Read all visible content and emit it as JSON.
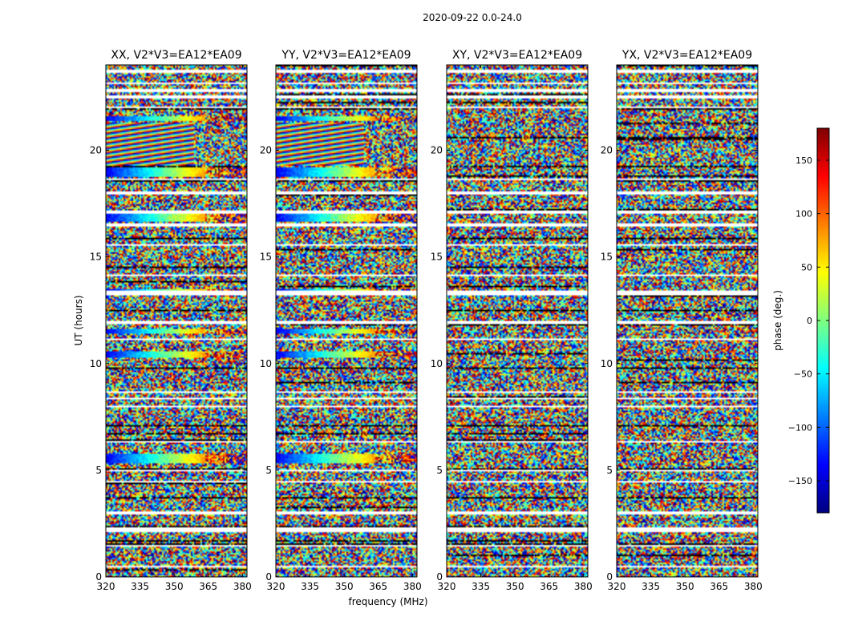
{
  "figure_title": "2020-09-22 0.0-24.0",
  "chart_data": [
    {
      "type": "heatmap",
      "title": "XX, V2*V3=EA12*EA09",
      "polarization": "XX",
      "xlabel": "",
      "ylabel": "UT (hours)",
      "xlim": [
        320,
        382
      ],
      "ylim": [
        0,
        24
      ],
      "xticks": [
        320,
        335,
        350,
        365,
        380
      ],
      "yticks": [
        0,
        5,
        10,
        15,
        20
      ],
      "show_yticks": true
    },
    {
      "type": "heatmap",
      "title": "YY, V2*V3=EA12*EA09",
      "polarization": "YY",
      "xlabel": "frequency (MHz)",
      "ylabel": "",
      "xlim": [
        320,
        382
      ],
      "ylim": [
        0,
        24
      ],
      "xticks": [
        320,
        335,
        350,
        365,
        380
      ],
      "yticks": [
        0,
        5,
        10,
        15,
        20
      ],
      "show_yticks": true
    },
    {
      "type": "heatmap",
      "title": "XY, V2*V3=EA12*EA09",
      "polarization": "XY",
      "xlabel": "",
      "ylabel": "",
      "xlim": [
        320,
        382
      ],
      "ylim": [
        0,
        24
      ],
      "xticks": [
        320,
        335,
        350,
        365,
        380
      ],
      "yticks": [
        0,
        5,
        10,
        15,
        20
      ],
      "show_yticks": true
    },
    {
      "type": "heatmap",
      "title": "YX, V2*V3=EA12*EA09",
      "polarization": "YX",
      "xlabel": "",
      "ylabel": "",
      "xlim": [
        320,
        382
      ],
      "ylim": [
        0,
        24
      ],
      "xticks": [
        320,
        335,
        350,
        365,
        380
      ],
      "yticks": [
        0,
        5,
        10,
        15,
        20
      ],
      "show_yticks": true
    }
  ],
  "colorbar": {
    "label": "phase (deg.)",
    "range": [
      -180,
      180
    ],
    "ticks": [
      -150,
      -100,
      -50,
      0,
      50,
      100,
      150
    ],
    "tick_labels": [
      "−150",
      "−100",
      "−50",
      "0",
      "50",
      "100",
      "150"
    ],
    "colormap": "jet",
    "colors": [
      "#00007f",
      "#0000ff",
      "#007fff",
      "#00ffff",
      "#7fff7f",
      "#ffff00",
      "#ff7f00",
      "#ff0000",
      "#7f0000"
    ]
  },
  "data_gaps_ut_hours": [
    [
      23.65,
      23.75
    ],
    [
      23.1,
      23.2
    ],
    [
      22.75,
      22.85
    ],
    [
      22.45,
      22.55
    ],
    [
      21.95,
      22.05
    ],
    [
      18.6,
      18.7
    ],
    [
      17.95,
      18.05
    ],
    [
      17.05,
      17.15
    ],
    [
      16.45,
      16.55
    ],
    [
      15.55,
      15.6
    ],
    [
      14.1,
      14.15
    ],
    [
      13.2,
      13.4
    ],
    [
      12.95,
      13.0
    ],
    [
      11.85,
      12.0
    ],
    [
      11.1,
      11.15
    ],
    [
      10.55,
      10.6
    ],
    [
      8.6,
      8.7
    ],
    [
      8.3,
      8.4
    ],
    [
      7.95,
      8.05
    ],
    [
      6.3,
      6.4
    ],
    [
      4.95,
      5.0
    ],
    [
      4.45,
      4.5
    ],
    [
      3.65,
      3.7
    ],
    [
      3.35,
      3.4
    ],
    [
      2.95,
      3.05
    ],
    [
      2.1,
      2.3
    ],
    [
      1.4,
      1.5
    ],
    [
      0.95,
      1.0
    ],
    [
      0.45,
      0.5
    ]
  ],
  "coherent_fringe_bands_ut_hours": [
    {
      "range": [
        21.35,
        21.6
      ],
      "pols": [
        "XX",
        "YY"
      ]
    },
    {
      "range": [
        19.25,
        21.3
      ],
      "pols": [
        "XX",
        "YY"
      ],
      "fringed": true
    },
    {
      "range": [
        18.75,
        19.2
      ],
      "pols": [
        "XX",
        "YY"
      ]
    },
    {
      "range": [
        16.65,
        17.0
      ],
      "pols": [
        "XX",
        "YY"
      ]
    },
    {
      "range": [
        13.3,
        13.5
      ],
      "pols": [
        "XX",
        "YY"
      ]
    },
    {
      "range": [
        11.4,
        11.6
      ],
      "pols": [
        "XX",
        "YY"
      ]
    },
    {
      "range": [
        10.3,
        10.6
      ],
      "pols": [
        "XX",
        "YY"
      ]
    },
    {
      "range": [
        5.35,
        5.8
      ],
      "pols": [
        "XX",
        "YY"
      ]
    }
  ]
}
